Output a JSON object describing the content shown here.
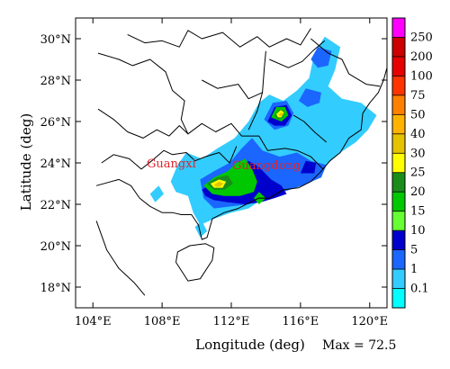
{
  "chart_data": {
    "type": "heatmap",
    "title": "",
    "xlabel": "Longitude (deg)",
    "ylabel": "Latitude (deg)",
    "xlim": [
      103,
      121
    ],
    "ylim": [
      17,
      31
    ],
    "x_tick_labels": [
      "104°E",
      "108°E",
      "112°E",
      "116°E",
      "120°E"
    ],
    "y_tick_labels": [
      "30°N",
      "28°N",
      "26°N",
      "24°N",
      "22°N",
      "20°N",
      "18°N"
    ],
    "annotation": "Max = 72.5",
    "max_value": 72.5,
    "region_labels": [
      "Guangxi",
      "Guangdong"
    ],
    "colorbar": {
      "levels": [
        "250",
        "200",
        "100",
        "75",
        "50",
        "40",
        "30",
        "25",
        "20",
        "15",
        "10",
        "5",
        "1",
        "0.1"
      ],
      "colors": [
        "#ff00ff",
        "#cc0000",
        "#e60000",
        "#ff3300",
        "#ff8000",
        "#ffb300",
        "#e6c300",
        "#ffff00",
        "#1a8c1a",
        "#00c800",
        "#66ff33",
        "#0000cc",
        "#1a66ff",
        "#33ccff",
        "#00ffff"
      ]
    },
    "contours": [
      {
        "level": "1",
        "color": "#33ccff",
        "points": [
          [
            108.9,
            23.9
          ],
          [
            109.4,
            24.5
          ],
          [
            110.3,
            24.2
          ],
          [
            111.2,
            24.7
          ],
          [
            112.2,
            25.2
          ],
          [
            113.0,
            26.0
          ],
          [
            113.6,
            26.9
          ],
          [
            114.2,
            27.3
          ],
          [
            115.0,
            27.0
          ],
          [
            115.8,
            27.5
          ],
          [
            116.5,
            28.1
          ],
          [
            116.8,
            29.3
          ],
          [
            117.4,
            30.1
          ],
          [
            118.3,
            29.6
          ],
          [
            118.0,
            28.5
          ],
          [
            117.6,
            27.7
          ],
          [
            118.4,
            27.1
          ],
          [
            119.5,
            26.9
          ],
          [
            120.4,
            26.3
          ],
          [
            119.9,
            25.6
          ],
          [
            119.2,
            25.0
          ],
          [
            118.3,
            24.5
          ],
          [
            117.2,
            23.7
          ],
          [
            116.0,
            23.1
          ],
          [
            114.8,
            22.6
          ],
          [
            113.7,
            22.2
          ],
          [
            113.0,
            21.8
          ],
          [
            112.0,
            21.6
          ],
          [
            111.0,
            21.3
          ],
          [
            110.2,
            21.0
          ],
          [
            109.8,
            21.6
          ],
          [
            109.5,
            22.4
          ],
          [
            108.8,
            22.6
          ],
          [
            108.5,
            23.1
          ]
        ]
      },
      {
        "level": "1",
        "color": "#33ccff",
        "points": [
          [
            107.3,
            22.5
          ],
          [
            107.8,
            22.9
          ],
          [
            108.1,
            22.5
          ],
          [
            107.6,
            22.1
          ]
        ]
      },
      {
        "level": "1",
        "color": "#33ccff",
        "points": [
          [
            109.9,
            20.9
          ],
          [
            110.3,
            21.2
          ],
          [
            110.6,
            20.7
          ],
          [
            110.2,
            20.4
          ]
        ]
      },
      {
        "level": "5",
        "color": "#1a66ff",
        "points": [
          [
            110.2,
            23.2
          ],
          [
            111.0,
            23.6
          ],
          [
            111.9,
            24.0
          ],
          [
            112.6,
            24.7
          ],
          [
            113.2,
            25.2
          ],
          [
            113.8,
            24.6
          ],
          [
            114.8,
            24.3
          ],
          [
            115.8,
            24.5
          ],
          [
            116.6,
            24.1
          ],
          [
            117.5,
            23.9
          ],
          [
            117.2,
            23.3
          ],
          [
            116.1,
            22.9
          ],
          [
            115.0,
            22.6
          ],
          [
            113.9,
            22.3
          ],
          [
            113.0,
            22.0
          ],
          [
            112.0,
            21.9
          ],
          [
            111.0,
            21.8
          ],
          [
            110.4,
            22.3
          ]
        ]
      },
      {
        "level": "5",
        "color": "#1a66ff",
        "points": [
          [
            113.9,
            26.1
          ],
          [
            114.4,
            26.9
          ],
          [
            115.2,
            27.0
          ],
          [
            115.6,
            26.4
          ],
          [
            115.3,
            25.8
          ],
          [
            114.5,
            25.6
          ]
        ]
      },
      {
        "level": "5",
        "color": "#1a66ff",
        "points": [
          [
            115.9,
            27.0
          ],
          [
            116.3,
            27.6
          ],
          [
            117.2,
            27.4
          ],
          [
            117.1,
            26.9
          ],
          [
            116.4,
            26.7
          ]
        ]
      },
      {
        "level": "5",
        "color": "#1a66ff",
        "points": [
          [
            116.6,
            29.0
          ],
          [
            117.0,
            29.6
          ],
          [
            117.8,
            29.4
          ],
          [
            117.6,
            28.7
          ],
          [
            117.0,
            28.6
          ]
        ]
      },
      {
        "level": "10",
        "color": "#0000cc",
        "points": [
          [
            110.3,
            22.7
          ],
          [
            111.0,
            23.1
          ],
          [
            111.7,
            23.4
          ],
          [
            112.4,
            23.8
          ],
          [
            113.0,
            24.1
          ],
          [
            113.6,
            23.8
          ],
          [
            114.3,
            23.2
          ],
          [
            114.9,
            22.9
          ],
          [
            115.2,
            22.5
          ],
          [
            114.5,
            22.3
          ],
          [
            113.7,
            22.1
          ],
          [
            112.8,
            22.0
          ],
          [
            111.8,
            22.1
          ],
          [
            111.0,
            22.2
          ],
          [
            110.5,
            22.4
          ]
        ]
      },
      {
        "level": "10",
        "color": "#0000cc",
        "points": [
          [
            114.1,
            26.0
          ],
          [
            114.5,
            26.7
          ],
          [
            115.2,
            26.8
          ],
          [
            115.5,
            26.3
          ],
          [
            115.1,
            25.8
          ],
          [
            114.5,
            25.8
          ]
        ]
      },
      {
        "level": "10",
        "color": "#0000cc",
        "points": [
          [
            116.0,
            23.5
          ],
          [
            116.3,
            24.1
          ],
          [
            116.9,
            24.0
          ],
          [
            116.8,
            23.5
          ]
        ]
      },
      {
        "level": "15",
        "color": "#00c800",
        "points": [
          [
            110.4,
            22.9
          ],
          [
            111.0,
            23.3
          ],
          [
            111.8,
            23.6
          ],
          [
            112.3,
            24.0
          ],
          [
            112.8,
            24.2
          ],
          [
            113.2,
            23.7
          ],
          [
            113.5,
            23.1
          ],
          [
            113.3,
            22.6
          ],
          [
            112.5,
            22.4
          ],
          [
            111.6,
            22.4
          ],
          [
            110.9,
            22.5
          ]
        ]
      },
      {
        "level": "15",
        "color": "#00c800",
        "points": [
          [
            114.3,
            26.2
          ],
          [
            114.6,
            26.7
          ],
          [
            115.1,
            26.7
          ],
          [
            115.3,
            26.3
          ],
          [
            114.9,
            26.0
          ]
        ]
      },
      {
        "level": "15",
        "color": "#00c800",
        "points": [
          [
            113.3,
            22.3
          ],
          [
            113.6,
            22.6
          ],
          [
            114.0,
            22.3
          ],
          [
            113.6,
            22.0
          ]
        ]
      },
      {
        "level": "20",
        "color": "#1a8c1a",
        "points": [
          [
            110.6,
            23.0
          ],
          [
            111.2,
            23.3
          ],
          [
            111.8,
            23.4
          ],
          [
            112.1,
            23.0
          ],
          [
            111.6,
            22.7
          ],
          [
            111.0,
            22.7
          ]
        ]
      },
      {
        "level": "20",
        "color": "#1a8c1a",
        "points": [
          [
            114.5,
            26.3
          ],
          [
            114.8,
            26.6
          ],
          [
            115.1,
            26.5
          ],
          [
            115.0,
            26.2
          ],
          [
            114.7,
            26.1
          ]
        ]
      },
      {
        "level": "25",
        "color": "#ffff00",
        "points": [
          [
            110.8,
            23.0
          ],
          [
            111.3,
            23.2
          ],
          [
            111.7,
            23.1
          ],
          [
            111.5,
            22.8
          ],
          [
            111.0,
            22.8
          ]
        ]
      },
      {
        "level": "25",
        "color": "#ffff00",
        "points": [
          [
            114.6,
            26.35
          ],
          [
            114.85,
            26.55
          ],
          [
            115.05,
            26.45
          ],
          [
            114.9,
            26.2
          ],
          [
            114.7,
            26.2
          ]
        ]
      },
      {
        "level": "30",
        "color": "#e6c300",
        "points": [
          [
            111.0,
            22.95
          ],
          [
            111.3,
            23.1
          ],
          [
            111.55,
            23.0
          ],
          [
            111.35,
            22.85
          ],
          [
            111.1,
            22.85
          ]
        ]
      },
      {
        "level": "30",
        "color": "#e6c300",
        "points": [
          [
            114.72,
            26.32
          ],
          [
            114.9,
            26.45
          ],
          [
            115.0,
            26.35
          ],
          [
            114.85,
            26.25
          ]
        ]
      }
    ],
    "map_lines": [
      [
        [
          106.0,
          30.2
        ],
        [
          107.0,
          29.8
        ],
        [
          108.0,
          29.9
        ],
        [
          109.0,
          29.6
        ],
        [
          109.5,
          30.4
        ],
        [
          110.3,
          30.0
        ],
        [
          111.5,
          30.3
        ],
        [
          112.5,
          29.6
        ],
        [
          113.5,
          30.1
        ],
        [
          114.2,
          29.6
        ],
        [
          115.2,
          30.0
        ],
        [
          116.0,
          29.7
        ],
        [
          116.6,
          30.5
        ]
      ],
      [
        [
          104.3,
          29.3
        ],
        [
          105.5,
          29.0
        ],
        [
          106.3,
          28.7
        ],
        [
          107.3,
          29.0
        ],
        [
          108.2,
          28.4
        ],
        [
          108.6,
          27.5
        ],
        [
          109.3,
          27.0
        ],
        [
          109.1,
          26.1
        ],
        [
          109.5,
          25.4
        ],
        [
          110.3,
          25.9
        ],
        [
          111.1,
          25.5
        ],
        [
          112.0,
          25.9
        ],
        [
          112.6,
          25.3
        ],
        [
          113.6,
          25.3
        ],
        [
          114.1,
          24.6
        ],
        [
          115.1,
          24.7
        ],
        [
          115.8,
          24.6
        ],
        [
          116.6,
          24.3
        ],
        [
          117.3,
          23.7
        ]
      ],
      [
        [
          104.3,
          26.6
        ],
        [
          105.2,
          26.1
        ],
        [
          106.0,
          25.5
        ],
        [
          106.9,
          25.2
        ],
        [
          107.7,
          25.6
        ],
        [
          108.4,
          25.3
        ],
        [
          109.0,
          25.8
        ],
        [
          109.5,
          25.4
        ]
      ],
      [
        [
          104.5,
          24.0
        ],
        [
          105.2,
          24.4
        ],
        [
          106.1,
          24.2
        ],
        [
          106.8,
          23.7
        ],
        [
          107.4,
          24.1
        ],
        [
          108.1,
          24.6
        ],
        [
          108.6,
          24.4
        ],
        [
          109.4,
          24.5
        ],
        [
          109.9,
          24.1
        ],
        [
          110.5,
          24.3
        ],
        [
          111.3,
          24.5
        ],
        [
          111.9,
          24.0
        ],
        [
          112.3,
          24.8
        ]
      ],
      [
        [
          113.0,
          25.6
        ],
        [
          113.5,
          26.5
        ],
        [
          113.8,
          27.4
        ],
        [
          113.9,
          28.5
        ],
        [
          114.0,
          29.4
        ]
      ],
      [
        [
          110.3,
          28.0
        ],
        [
          111.2,
          27.6
        ],
        [
          112.4,
          27.8
        ],
        [
          113.0,
          27.1
        ],
        [
          113.8,
          27.4
        ]
      ],
      [
        [
          114.2,
          29.0
        ],
        [
          115.3,
          28.6
        ],
        [
          116.1,
          28.9
        ],
        [
          116.7,
          29.4
        ],
        [
          117.4,
          29.9
        ]
      ],
      [
        [
          115.6,
          26.3
        ],
        [
          116.2,
          26.0
        ],
        [
          116.8,
          25.5
        ],
        [
          117.5,
          25.0
        ]
      ],
      [
        [
          116.6,
          30.0
        ],
        [
          117.6,
          29.3
        ],
        [
          118.4,
          29.0
        ],
        [
          118.8,
          28.3
        ],
        [
          119.8,
          27.8
        ],
        [
          120.6,
          27.7
        ]
      ],
      [
        [
          104.2,
          22.9
        ],
        [
          105.5,
          23.2
        ],
        [
          106.2,
          22.9
        ],
        [
          106.7,
          22.3
        ],
        [
          107.3,
          21.9
        ],
        [
          108.0,
          21.6
        ],
        [
          108.6,
          21.6
        ],
        [
          109.1,
          21.5
        ],
        [
          109.7,
          21.5
        ],
        [
          110.1,
          21.0
        ],
        [
          110.3,
          20.3
        ],
        [
          110.6,
          20.4
        ],
        [
          110.9,
          21.3
        ],
        [
          111.6,
          21.6
        ],
        [
          112.4,
          21.8
        ],
        [
          113.1,
          22.1
        ],
        [
          113.6,
          22.3
        ],
        [
          114.2,
          22.3
        ],
        [
          115.0,
          22.7
        ],
        [
          115.9,
          22.8
        ],
        [
          116.6,
          23.1
        ],
        [
          117.2,
          23.6
        ],
        [
          117.7,
          24.1
        ],
        [
          118.3,
          24.5
        ],
        [
          118.8,
          25.2
        ],
        [
          119.5,
          25.6
        ],
        [
          119.6,
          26.4
        ],
        [
          120.0,
          26.9
        ],
        [
          120.5,
          27.4
        ],
        [
          120.8,
          28.0
        ],
        [
          121.0,
          28.6
        ]
      ],
      [
        [
          104.2,
          21.2
        ],
        [
          104.8,
          19.8
        ],
        [
          105.5,
          18.9
        ],
        [
          106.4,
          18.2
        ],
        [
          107.0,
          17.6
        ]
      ],
      [
        [
          108.8,
          19.2
        ],
        [
          109.5,
          18.3
        ],
        [
          110.2,
          18.4
        ],
        [
          110.9,
          19.3
        ],
        [
          111.0,
          19.9
        ],
        [
          110.5,
          20.1
        ],
        [
          109.6,
          20.0
        ],
        [
          108.9,
          19.7
        ],
        [
          108.8,
          19.2
        ]
      ]
    ]
  }
}
